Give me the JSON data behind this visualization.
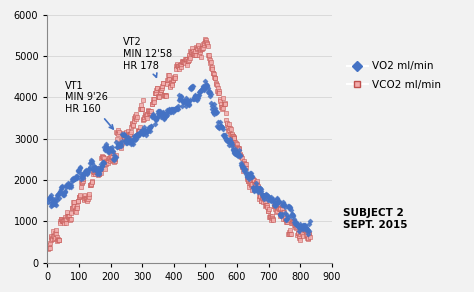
{
  "title": "",
  "xlim": [
    0,
    900
  ],
  "ylim": [
    0,
    6000
  ],
  "yticks": [
    0,
    1000,
    2000,
    3000,
    4000,
    5000,
    6000
  ],
  "xticks": [
    0,
    100,
    200,
    300,
    400,
    500,
    600,
    700,
    800,
    900
  ],
  "vo2_color": "#4472C4",
  "vco2_color": "#C0504D",
  "vco2_face": "#F2ACAB",
  "annotation1_text": "VT1\nMIN 9'26\nHR 160",
  "annotation2_text": "VT2\nMIN 12'58\nHR 178",
  "legend_vo2": "VO2 ml/min",
  "legend_vco2": "VCO2 ml/min",
  "subject_text": "SUBJECT 2\nSEPT. 2015",
  "background_color": "#f2f2f2",
  "grid_color": "#d0d0d0",
  "figsize": [
    4.74,
    2.92
  ],
  "dpi": 100
}
